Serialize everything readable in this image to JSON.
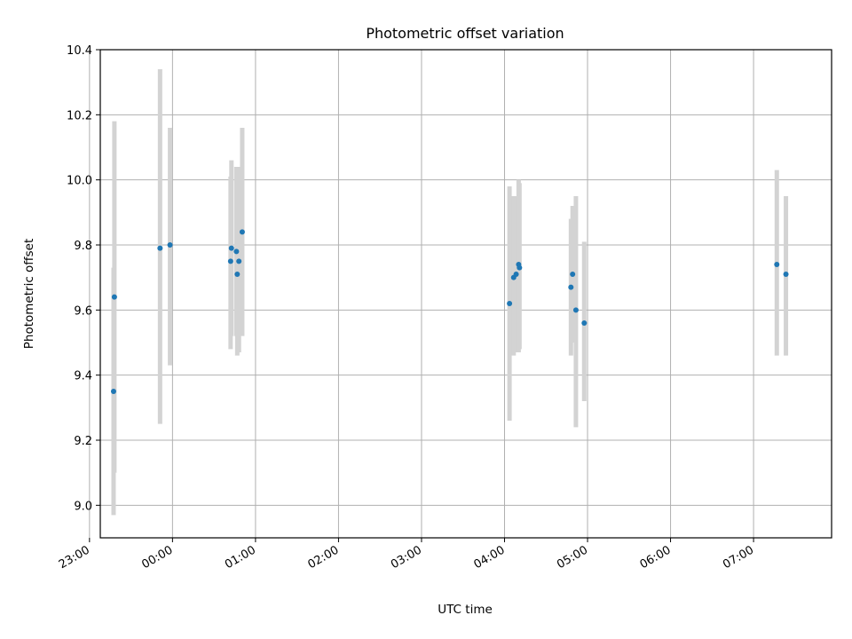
{
  "chart_data": {
    "type": "scatter",
    "title": "Photometric offset variation",
    "xlabel": "UTC time",
    "ylabel": "Photometric offset",
    "x_unit": "hours",
    "xlim": [
      -0.87,
      7.94
    ],
    "ylim": [
      8.9,
      10.4
    ],
    "xticks": [
      {
        "value": -1,
        "label": "23:00"
      },
      {
        "value": 0,
        "label": "00:00"
      },
      {
        "value": 1,
        "label": "01:00"
      },
      {
        "value": 2,
        "label": "02:00"
      },
      {
        "value": 3,
        "label": "03:00"
      },
      {
        "value": 4,
        "label": "04:00"
      },
      {
        "value": 5,
        "label": "05:00"
      },
      {
        "value": 6,
        "label": "06:00"
      },
      {
        "value": 7,
        "label": "07:00"
      }
    ],
    "yticks": [
      {
        "value": 9.0,
        "label": "9.0"
      },
      {
        "value": 9.2,
        "label": "9.2"
      },
      {
        "value": 9.4,
        "label": "9.4"
      },
      {
        "value": 9.6,
        "label": "9.6"
      },
      {
        "value": 9.8,
        "label": "9.8"
      },
      {
        "value": 10.0,
        "label": "10.0"
      },
      {
        "value": 10.2,
        "label": "10.2"
      },
      {
        "value": 10.4,
        "label": "10.4"
      }
    ],
    "grid": true,
    "colors": {
      "point": "#1f77b4",
      "errorbar": "#d3d3d3",
      "grid": "#b0b0b0",
      "axis": "#000000"
    },
    "points": [
      {
        "x": -0.71,
        "y": 9.35,
        "low": 8.97,
        "high": 9.73
      },
      {
        "x": -0.7,
        "y": 9.64,
        "low": 9.1,
        "high": 10.18
      },
      {
        "x": -0.15,
        "y": 9.79,
        "low": 9.25,
        "high": 10.34
      },
      {
        "x": -0.03,
        "y": 9.8,
        "low": 9.43,
        "high": 10.16
      },
      {
        "x": 0.7,
        "y": 9.75,
        "low": 9.48,
        "high": 10.01
      },
      {
        "x": 0.71,
        "y": 9.79,
        "low": 9.52,
        "high": 10.06
      },
      {
        "x": 0.77,
        "y": 9.78,
        "low": 9.52,
        "high": 10.04
      },
      {
        "x": 0.78,
        "y": 9.71,
        "low": 9.46,
        "high": 9.97
      },
      {
        "x": 0.8,
        "y": 9.75,
        "low": 9.47,
        "high": 10.04
      },
      {
        "x": 0.84,
        "y": 9.84,
        "low": 9.52,
        "high": 10.16
      },
      {
        "x": 4.06,
        "y": 9.62,
        "low": 9.26,
        "high": 9.98
      },
      {
        "x": 4.11,
        "y": 9.7,
        "low": 9.46,
        "high": 9.95
      },
      {
        "x": 4.14,
        "y": 9.71,
        "low": 9.47,
        "high": 9.95
      },
      {
        "x": 4.17,
        "y": 9.74,
        "low": 9.47,
        "high": 10.0
      },
      {
        "x": 4.18,
        "y": 9.73,
        "low": 9.48,
        "high": 9.99
      },
      {
        "x": 4.8,
        "y": 9.67,
        "low": 9.46,
        "high": 9.88
      },
      {
        "x": 4.82,
        "y": 9.71,
        "low": 9.5,
        "high": 9.92
      },
      {
        "x": 4.86,
        "y": 9.6,
        "low": 9.24,
        "high": 9.95
      },
      {
        "x": 4.96,
        "y": 9.56,
        "low": 9.32,
        "high": 9.81
      },
      {
        "x": 7.28,
        "y": 9.74,
        "low": 9.46,
        "high": 10.03
      },
      {
        "x": 7.39,
        "y": 9.71,
        "low": 9.46,
        "high": 9.95
      }
    ]
  }
}
